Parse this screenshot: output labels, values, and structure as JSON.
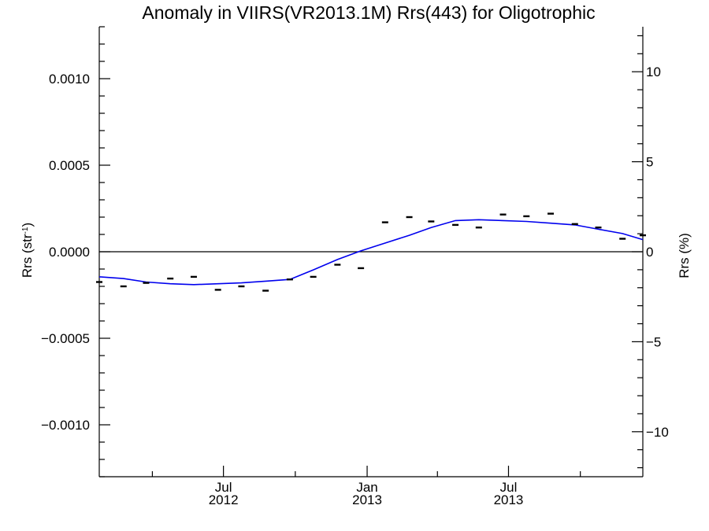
{
  "chart_data": {
    "type": "scatter",
    "title": "Anomaly in VIIRS(VR2013.1M) Rrs(443) for Oligotrophic",
    "ylabel_left": {
      "main": "Rrs (str",
      "sup": "-1",
      "close": ")"
    },
    "ylabel_right": "Rrs (%)",
    "xlabel": "",
    "x_range": [
      "2012-01-24",
      "2013-12-20"
    ],
    "ylim_left": [
      -0.0013,
      0.0013
    ],
    "ylim_right": [
      -12.5,
      12.5
    ],
    "left_ticks": [
      {
        "value": 0.001,
        "label": "0.0010"
      },
      {
        "value": 0.0005,
        "label": "0.0005"
      },
      {
        "value": 0.0,
        "label": "0.0000"
      },
      {
        "value": -0.0005,
        "label": "−0.0005"
      },
      {
        "value": -0.001,
        "label": "−0.0010"
      }
    ],
    "right_ticks": [
      {
        "value": 10,
        "label": "10"
      },
      {
        "value": 5,
        "label": "5"
      },
      {
        "value": 0,
        "label": "0"
      },
      {
        "value": -5,
        "label": "−5"
      },
      {
        "value": -10,
        "label": "−10"
      }
    ],
    "x_major_ticks": [
      {
        "date": "2012-07-01",
        "label_top": "Jul",
        "label_bottom": "2012"
      },
      {
        "date": "2013-01-01",
        "label_top": "Jan",
        "label_bottom": "2013"
      },
      {
        "date": "2013-07-01",
        "label_top": "Jul",
        "label_bottom": "2013"
      }
    ],
    "x_minor_ticks": [
      "2012-04-01",
      "2012-10-01",
      "2013-04-01",
      "2013-10-01"
    ],
    "zero_line": true,
    "grid": false,
    "series": [
      {
        "kind": "points",
        "marker": "dash",
        "color": "#000000",
        "points": [
          {
            "x": "2012-01-24",
            "y": -0.000175
          },
          {
            "x": "2012-02-24",
            "y": -0.0002
          },
          {
            "x": "2012-03-24",
            "y": -0.00018
          },
          {
            "x": "2012-04-24",
            "y": -0.000155
          },
          {
            "x": "2012-05-24",
            "y": -0.000145
          },
          {
            "x": "2012-06-24",
            "y": -0.00022
          },
          {
            "x": "2012-07-24",
            "y": -0.0002
          },
          {
            "x": "2012-08-24",
            "y": -0.000225
          },
          {
            "x": "2012-09-24",
            "y": -0.00016
          },
          {
            "x": "2012-10-24",
            "y": -0.000145
          },
          {
            "x": "2012-11-24",
            "y": -7.5e-05
          },
          {
            "x": "2012-12-24",
            "y": -9.5e-05
          },
          {
            "x": "2013-01-24",
            "y": 0.00017
          },
          {
            "x": "2013-02-24",
            "y": 0.0002
          },
          {
            "x": "2013-03-24",
            "y": 0.000175
          },
          {
            "x": "2013-04-24",
            "y": 0.000155
          },
          {
            "x": "2013-05-24",
            "y": 0.00014
          },
          {
            "x": "2013-06-24",
            "y": 0.000215
          },
          {
            "x": "2013-07-24",
            "y": 0.000205
          },
          {
            "x": "2013-08-24",
            "y": 0.00022
          },
          {
            "x": "2013-09-24",
            "y": 0.00016
          },
          {
            "x": "2013-10-24",
            "y": 0.00014
          },
          {
            "x": "2013-11-24",
            "y": 7.5e-05
          },
          {
            "x": "2013-12-20",
            "y": 9.5e-05
          }
        ]
      },
      {
        "kind": "line",
        "color": "#0000ee",
        "points": [
          {
            "x": "2012-01-24",
            "y": -0.000145
          },
          {
            "x": "2012-02-24",
            "y": -0.000155
          },
          {
            "x": "2012-03-24",
            "y": -0.000175
          },
          {
            "x": "2012-04-24",
            "y": -0.000185
          },
          {
            "x": "2012-05-24",
            "y": -0.00019
          },
          {
            "x": "2012-06-24",
            "y": -0.000185
          },
          {
            "x": "2012-07-24",
            "y": -0.00018
          },
          {
            "x": "2012-08-24",
            "y": -0.00017
          },
          {
            "x": "2012-09-24",
            "y": -0.00016
          },
          {
            "x": "2012-10-24",
            "y": -0.000105
          },
          {
            "x": "2012-11-24",
            "y": -4.5e-05
          },
          {
            "x": "2012-12-24",
            "y": 5e-06
          },
          {
            "x": "2013-01-24",
            "y": 5e-05
          },
          {
            "x": "2013-02-24",
            "y": 9.5e-05
          },
          {
            "x": "2013-03-24",
            "y": 0.00014
          },
          {
            "x": "2013-04-24",
            "y": 0.00018
          },
          {
            "x": "2013-05-24",
            "y": 0.000185
          },
          {
            "x": "2013-06-24",
            "y": 0.00018
          },
          {
            "x": "2013-07-24",
            "y": 0.000175
          },
          {
            "x": "2013-08-24",
            "y": 0.000165
          },
          {
            "x": "2013-09-24",
            "y": 0.000155
          },
          {
            "x": "2013-10-24",
            "y": 0.00013
          },
          {
            "x": "2013-11-24",
            "y": 0.000105
          },
          {
            "x": "2013-12-20",
            "y": 7e-05
          }
        ]
      }
    ]
  }
}
